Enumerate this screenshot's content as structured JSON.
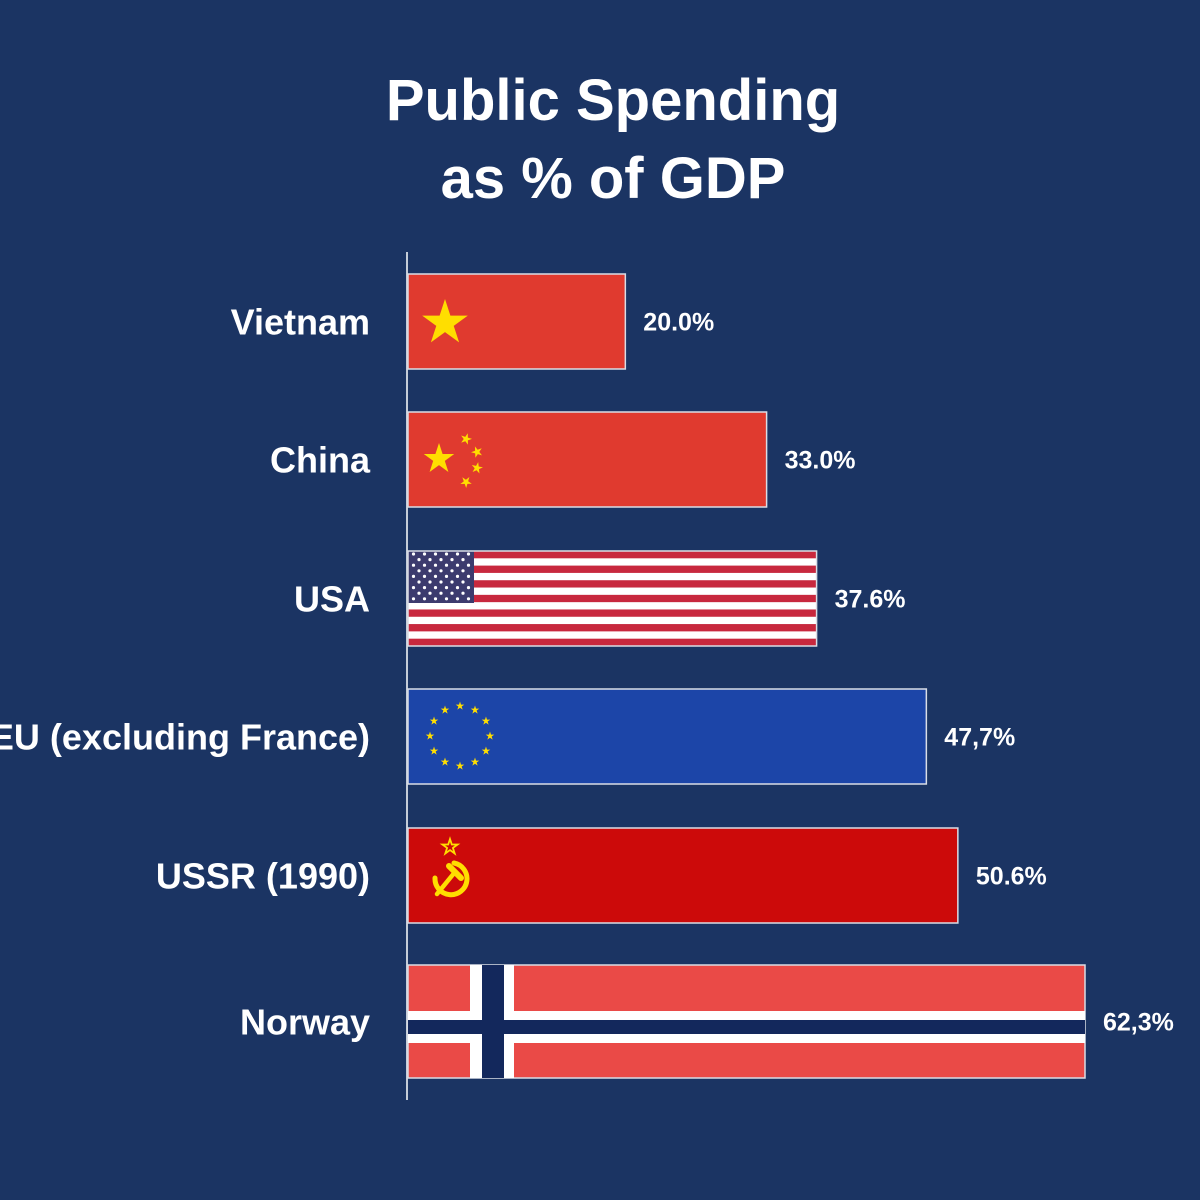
{
  "chart_data": {
    "type": "bar",
    "orientation": "horizontal",
    "title": [
      "Public Spending",
      "as % of GDP"
    ],
    "categories": [
      "Vietnam",
      "China",
      "USA",
      "EU (excluding France)",
      "USSR (1990)",
      "Norway"
    ],
    "values": [
      20.0,
      33.0,
      37.6,
      47.7,
      50.6,
      62.3
    ],
    "value_labels": [
      "20.0%",
      "33.0%",
      "37.6%",
      "47,7%",
      "50.6%",
      "62,3%"
    ],
    "bar_fills": [
      "flag-vietnam",
      "flag-china",
      "flag-usa",
      "flag-eu",
      "flag-ussr",
      "flag-norway"
    ],
    "xlim": [
      0,
      62.3
    ],
    "grid": false,
    "legend": "none"
  },
  "colors": {
    "background": "#1b3463",
    "text": "#ffffff",
    "axis": "#c4ccd8",
    "red": "#e03a2f",
    "yellow": "#ffde00",
    "usa_red": "#c8283e",
    "usa_blue": "#3c3b6e",
    "eu_blue": "#1c45a8",
    "ussr_red": "#cc0a0a",
    "norway_red": "#ea4a47",
    "norway_blue": "#13285c"
  }
}
